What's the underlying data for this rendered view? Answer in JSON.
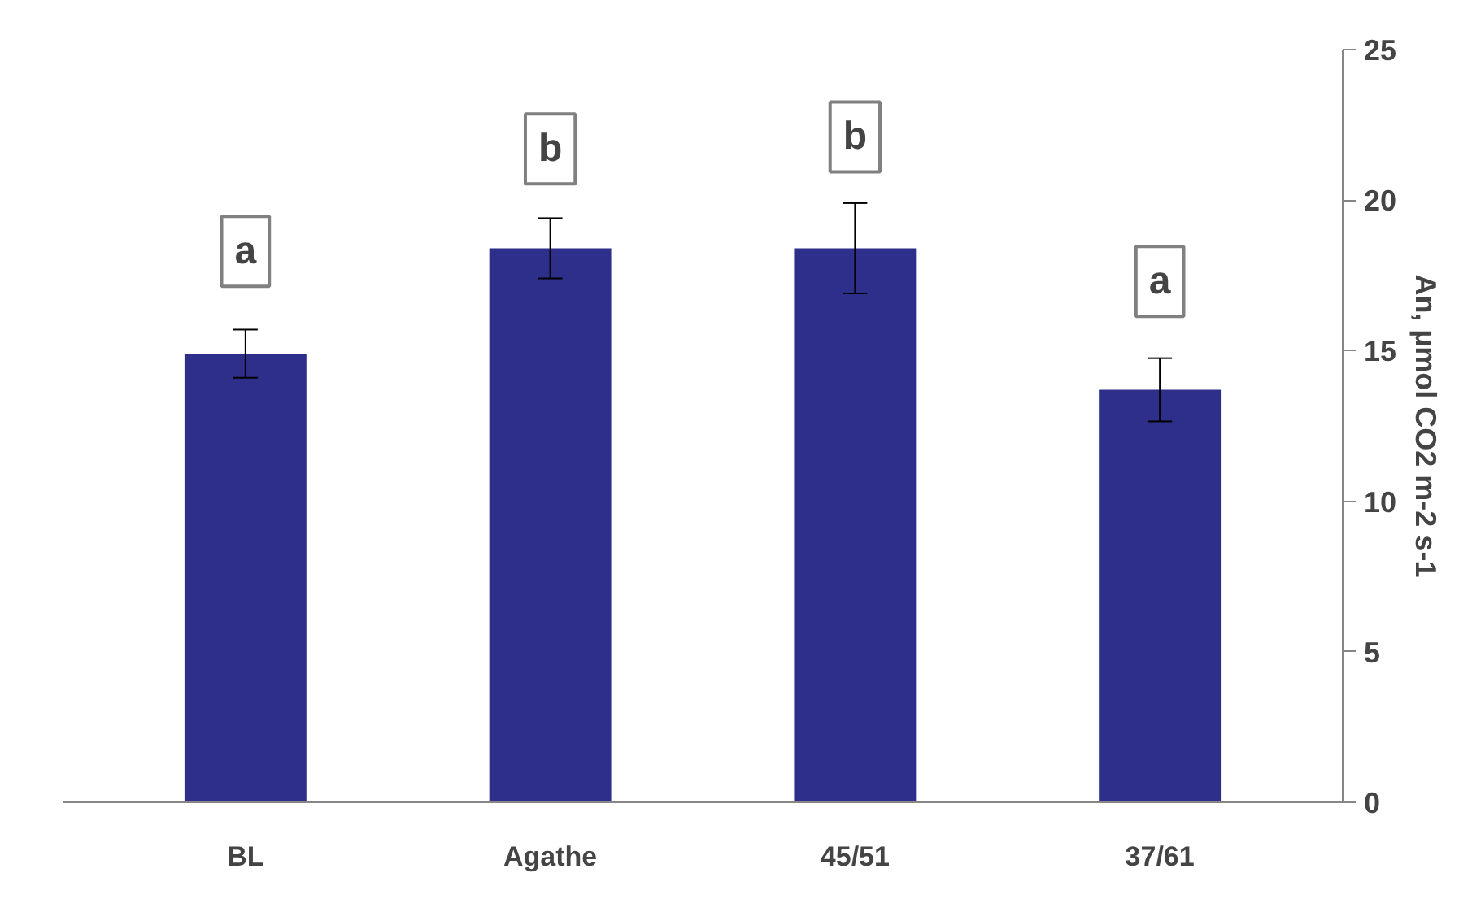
{
  "chart_data": {
    "type": "bar",
    "categories": [
      "BL",
      "Agathe",
      "45/51",
      "37/61"
    ],
    "values": [
      14.9,
      18.4,
      18.4,
      13.7
    ],
    "errors": [
      0.8,
      1.0,
      1.5,
      1.05
    ],
    "color": "#2e2f8a",
    "ylabel": "An, µmol CO2 m-2 s-1",
    "ylim": [
      0,
      25
    ],
    "yticks": [
      0,
      5,
      10,
      15,
      20,
      25
    ],
    "grid": false,
    "annotations": [
      {
        "text": "a",
        "x": "BL",
        "y": 18.3
      },
      {
        "text": "b",
        "x": "Agathe",
        "y": 21.7
      },
      {
        "text": "b",
        "x": "45/51",
        "y": 22.1
      },
      {
        "text": "a",
        "x": "37/61",
        "y": 17.3
      }
    ]
  }
}
